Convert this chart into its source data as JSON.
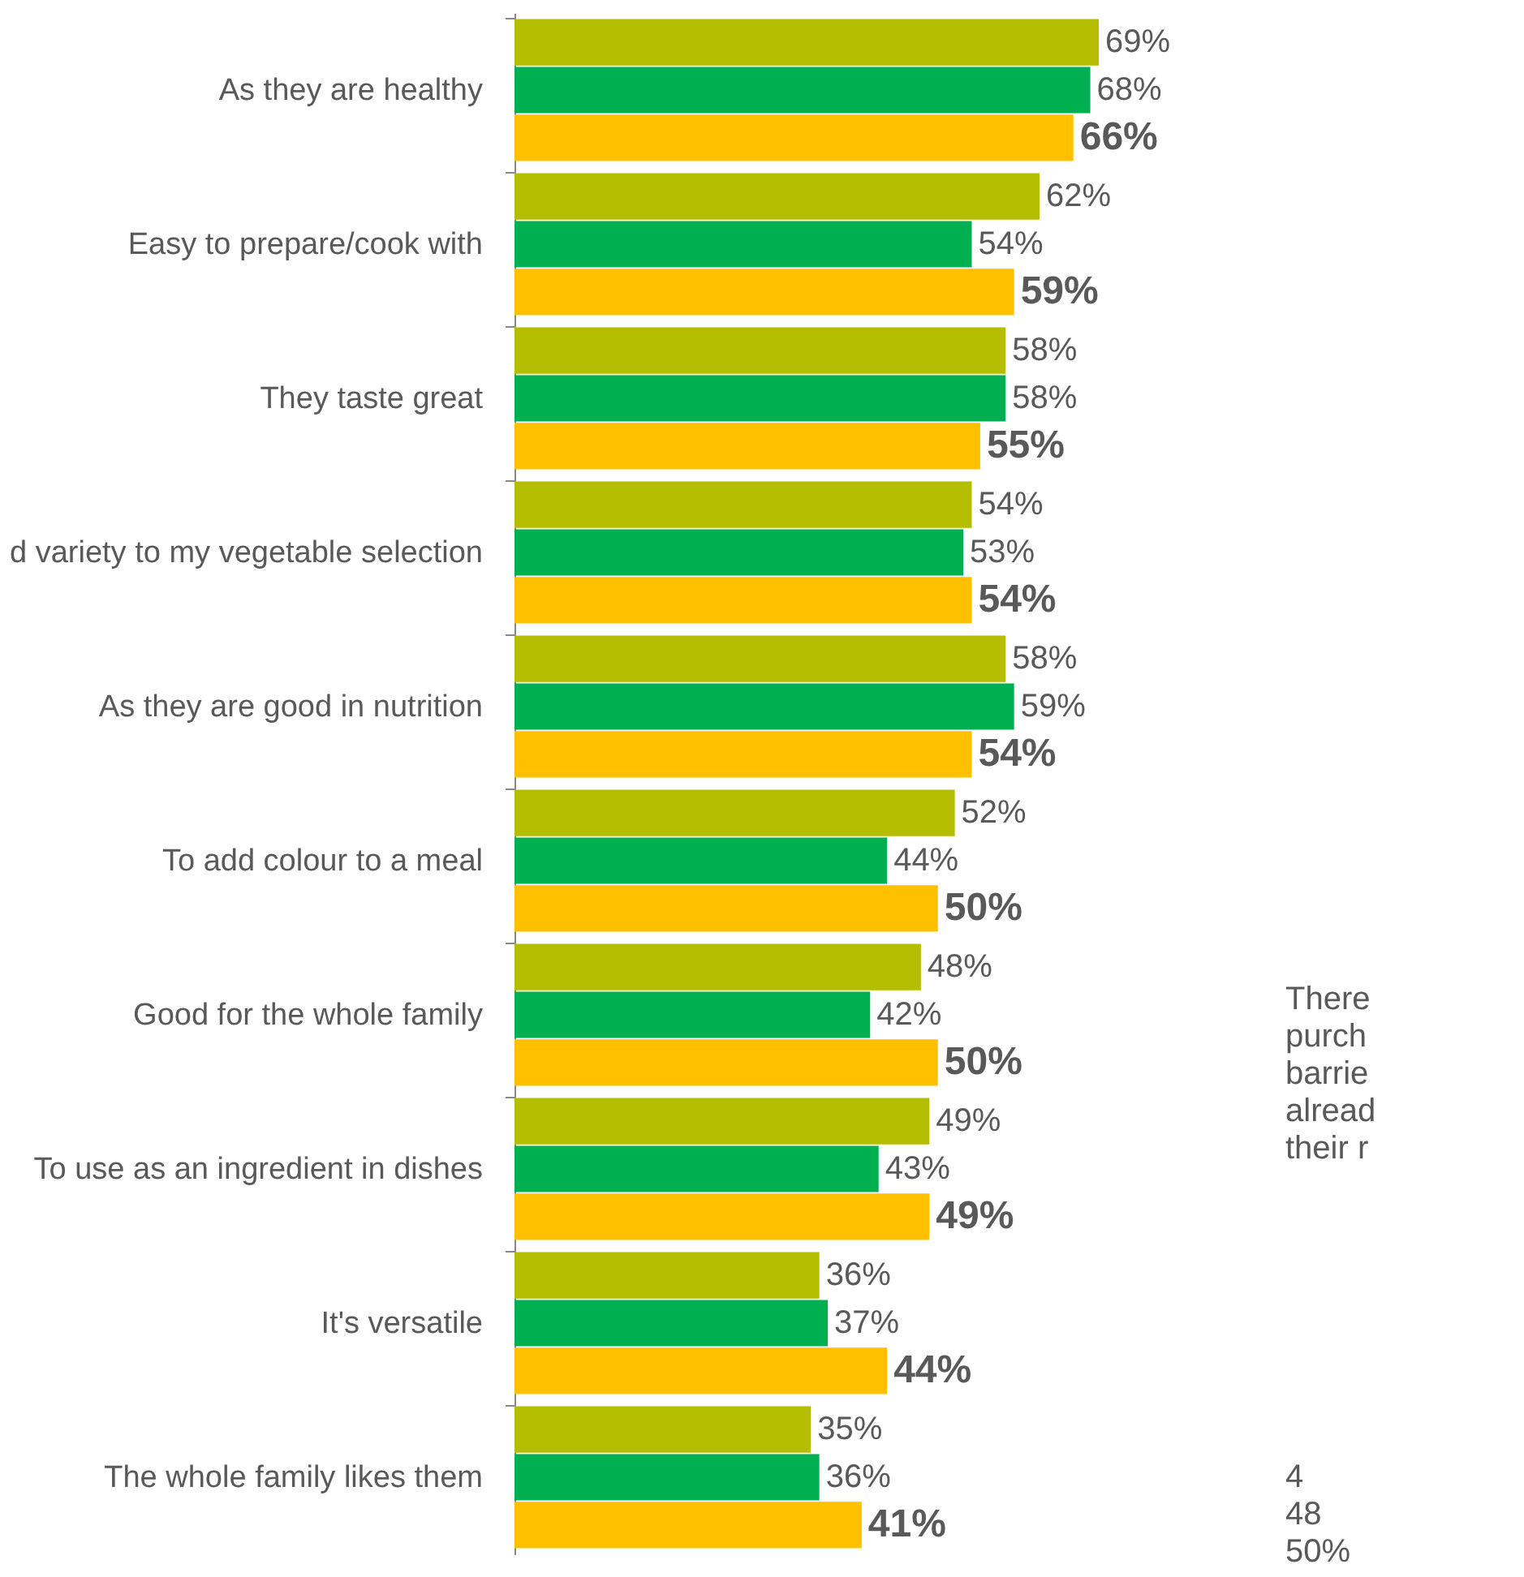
{
  "chart_data": {
    "type": "bar",
    "orientation": "horizontal",
    "legend": false,
    "grid": false,
    "data_labels": true,
    "categories": [
      "As they are healthy",
      "Easy to prepare/cook with",
      "They taste great",
      "d variety to my vegetable selection",
      "As they are good in nutrition",
      "To add colour to a meal",
      "Good for the whole family",
      "To use as an ingredient in dishes",
      "It's versatile",
      "The whole family likes them"
    ],
    "series": [
      {
        "color": "#b5bd00",
        "values": [
          69,
          62,
          58,
          54,
          58,
          52,
          48,
          49,
          36,
          35
        ],
        "value_labels": [
          "69%",
          "62%",
          "58%",
          "54%",
          "58%",
          "52%",
          "48%",
          "49%",
          "36%",
          "35%"
        ]
      },
      {
        "color": "#00b050",
        "values": [
          68,
          54,
          58,
          53,
          59,
          44,
          42,
          43,
          37,
          36
        ],
        "value_labels": [
          "68%",
          "54%",
          "58%",
          "53%",
          "59%",
          "44%",
          "42%",
          "43%",
          "37%",
          "36%"
        ]
      },
      {
        "color": "#ffc000",
        "values": [
          66,
          59,
          55,
          54,
          54,
          50,
          50,
          49,
          44,
          41
        ],
        "value_labels": [
          "66%",
          "59%",
          "55%",
          "54%",
          "54%",
          "50%",
          "50%",
          "49%",
          "44%",
          "41%"
        ]
      }
    ],
    "annotations": [
      "There\npurch\nbarrie\nalread\ntheir r",
      "4\n48\n50%"
    ]
  }
}
